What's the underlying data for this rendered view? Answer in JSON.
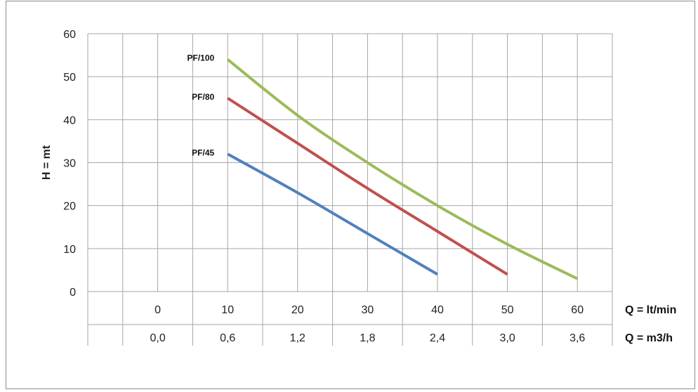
{
  "chart_data": {
    "type": "line",
    "ylabel": "H = mt",
    "ylim": [
      0,
      60
    ],
    "yticks": [
      "0",
      "10",
      "20",
      "30",
      "40",
      "50",
      "60"
    ],
    "xlim": [
      -10,
      65
    ],
    "x_axis_rows": [
      {
        "unit": "Q = lt/min",
        "labels": [
          "0",
          "10",
          "20",
          "30",
          "40",
          "50",
          "60"
        ]
      },
      {
        "unit": "Q = m3/h",
        "labels": [
          "0,0",
          "0,6",
          "1,2",
          "1,8",
          "2,4",
          "3,0",
          "3,6"
        ]
      }
    ],
    "series": [
      {
        "name": "PF/100",
        "color": "#9bbb59",
        "points": [
          [
            10,
            54
          ],
          [
            20,
            41
          ],
          [
            30,
            30
          ],
          [
            40,
            20
          ],
          [
            50,
            11
          ],
          [
            60,
            3
          ]
        ]
      },
      {
        "name": "PF/80",
        "color": "#c0504d",
        "points": [
          [
            10,
            45
          ],
          [
            20,
            34.5
          ],
          [
            30,
            24
          ],
          [
            40,
            14
          ],
          [
            50,
            4
          ]
        ]
      },
      {
        "name": "PF/45",
        "color": "#4f81bd",
        "points": [
          [
            10,
            32
          ],
          [
            20,
            23
          ],
          [
            30,
            13.5
          ],
          [
            40,
            4
          ]
        ]
      }
    ],
    "grid": true
  }
}
